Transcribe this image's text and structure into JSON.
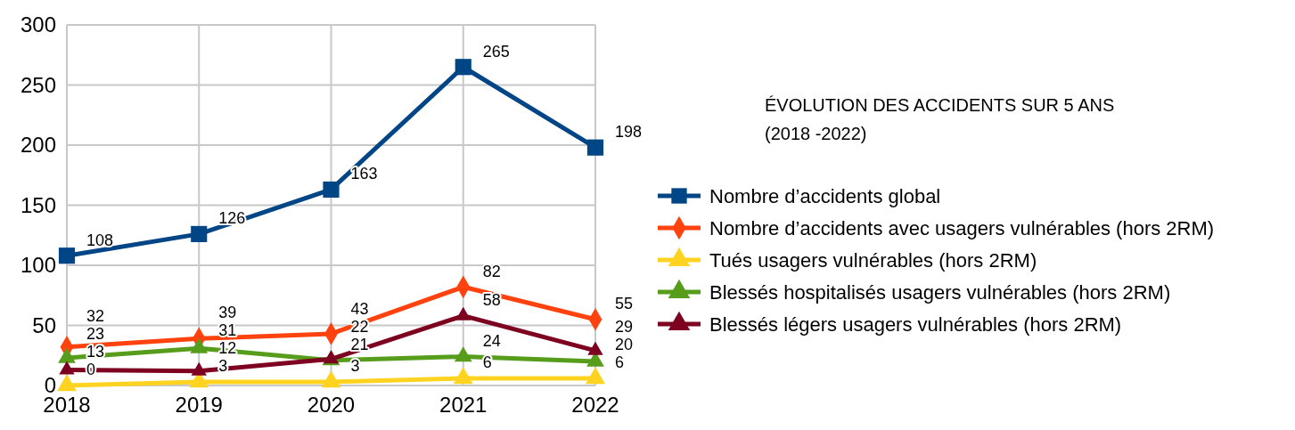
{
  "chart_data": {
    "type": "line",
    "title": "ÉVOLUTION DES ACCIDENTS SUR 5 ANS\n(2018 -2022)",
    "categories": [
      "2018",
      "2019",
      "2020",
      "2021",
      "2022"
    ],
    "series": [
      {
        "name": "Nombre d’accidents global",
        "color": "#004586",
        "marker": "square",
        "values": [
          108,
          126,
          163,
          265,
          198
        ]
      },
      {
        "name": "Nombre d’accidents avec usagers vulnérables (hors 2RM)",
        "color": "#ff420e",
        "marker": "diamond",
        "values": [
          32,
          39,
          43,
          82,
          55
        ]
      },
      {
        "name": "Tués usagers vulnérables (hors 2RM)",
        "color": "#ffd320",
        "marker": "triangle",
        "values": [
          0,
          3,
          3,
          6,
          6
        ]
      },
      {
        "name": "Blessés hospitalisés usagers vulnérables (hors 2RM)",
        "color": "#579d1c",
        "marker": "triangle",
        "values": [
          23,
          31,
          21,
          24,
          20
        ]
      },
      {
        "name": "Blessés légers usagers vulnérables (hors 2RM)",
        "color": "#7e0021",
        "marker": "triangle",
        "values": [
          13,
          12,
          22,
          58,
          29
        ]
      }
    ],
    "ylim": [
      0,
      300
    ],
    "yticks": [
      0,
      50,
      100,
      150,
      200,
      250,
      300
    ],
    "grid": true,
    "legend": "right",
    "data_labels": true
  }
}
